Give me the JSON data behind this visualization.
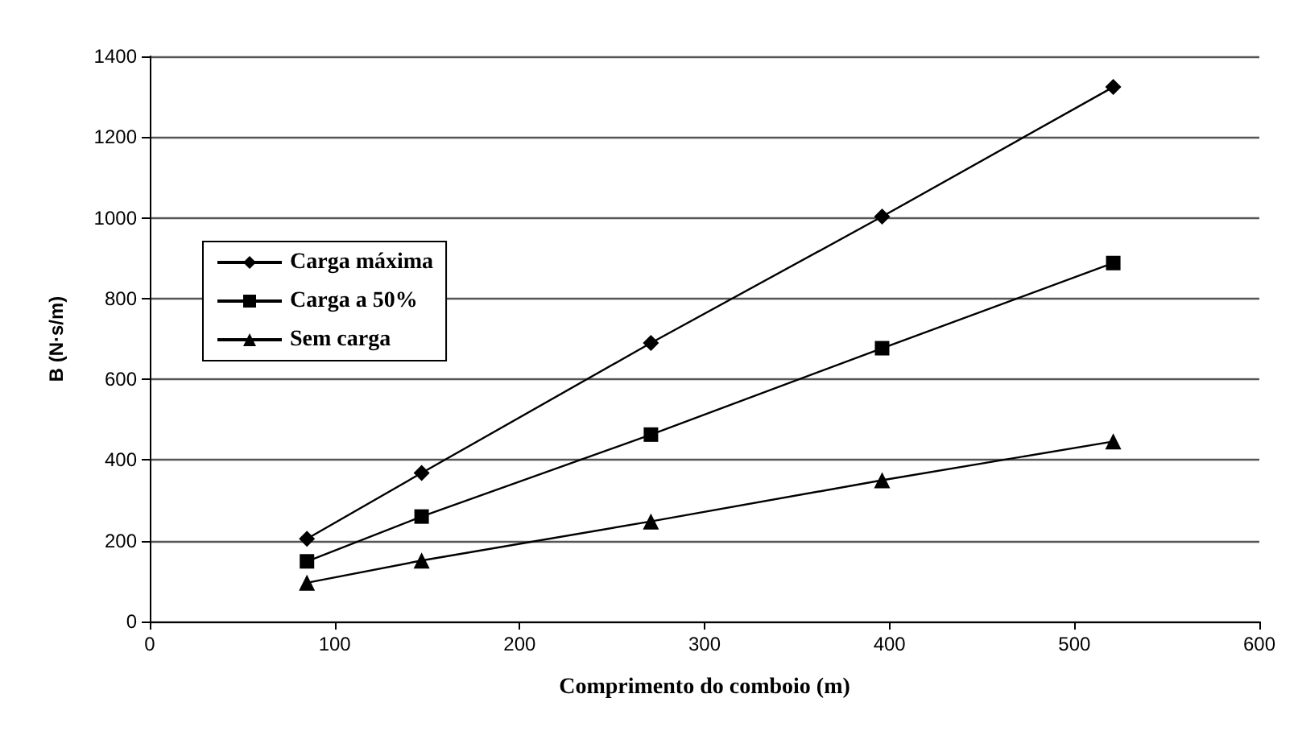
{
  "chart_data": {
    "type": "line",
    "xlabel": "Comprimento do comboio (m)",
    "ylabel": "B (N·s/m)",
    "x": [
      85,
      147,
      271,
      396,
      521
    ],
    "series": [
      {
        "name": "Carga máxima",
        "color": "#000000",
        "marker": "diamond",
        "values": [
          205,
          368,
          690,
          1003,
          1324
        ]
      },
      {
        "name": "Carga a 50%",
        "color": "#000000",
        "marker": "square",
        "values": [
          149,
          260,
          463,
          677,
          888
        ]
      },
      {
        "name": "Sem carga",
        "color": "#000000",
        "marker": "triangle",
        "values": [
          96,
          151,
          248,
          350,
          446
        ]
      }
    ],
    "xlim": [
      0,
      600
    ],
    "xticks": [
      0,
      100,
      200,
      300,
      400,
      500,
      600
    ],
    "ylim": [
      0,
      1400
    ],
    "yticks": [
      0,
      200,
      400,
      600,
      800,
      1000,
      1200,
      1400
    ],
    "grid": "y",
    "legend": "top left",
    "line_style": "solid"
  }
}
